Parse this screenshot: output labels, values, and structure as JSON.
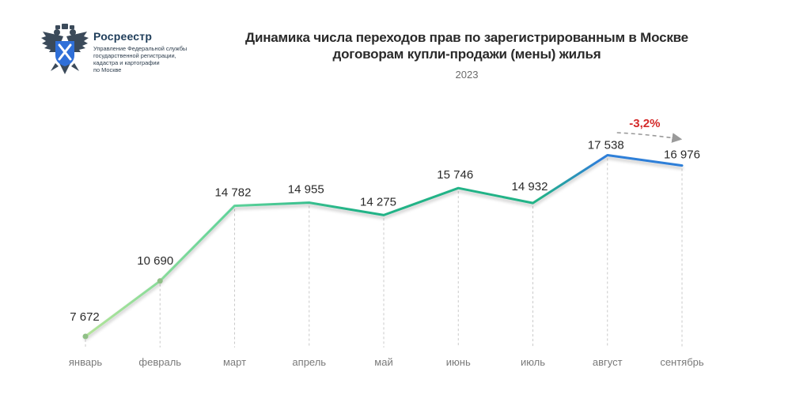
{
  "brand": {
    "name": "Росреестр",
    "subtitle_lines": [
      "Управление Федеральной службы",
      "государственной регистрации,",
      "кадастра и картографии",
      "по Москве"
    ],
    "emblem_icon": "double-headed-eagle-emblem"
  },
  "chart_data": {
    "type": "line",
    "title": "Динамика числа переходов прав по зарегистрированным в Москве договорам купли-продажи (мены) жилья",
    "title_lines": [
      "Динамика числа переходов прав по зарегистрированным в Москве",
      "договорам купли-продажи (мены) жилья"
    ],
    "subtitle": "2023",
    "categories": [
      "январь",
      "февраль",
      "март",
      "апрель",
      "май",
      "июнь",
      "июль",
      "август",
      "сентябрь"
    ],
    "series": [
      {
        "values": [
          7672,
          10690,
          14782,
          14955,
          14275,
          15746,
          14932,
          17538,
          16976
        ],
        "labels": [
          "7 672",
          "10 690",
          "14 782",
          "14 955",
          "14 275",
          "15 746",
          "14 932",
          "17 538",
          "16 976"
        ]
      }
    ],
    "annotation": {
      "text": "-3,2%",
      "from": "август",
      "to": "сентябрь",
      "color": "#d42a2a"
    },
    "colors": {
      "start": "#b4e49a",
      "main": "#22b387",
      "end": "#2f7fd8"
    },
    "grid": "vertical-dashed",
    "legend": "none"
  }
}
